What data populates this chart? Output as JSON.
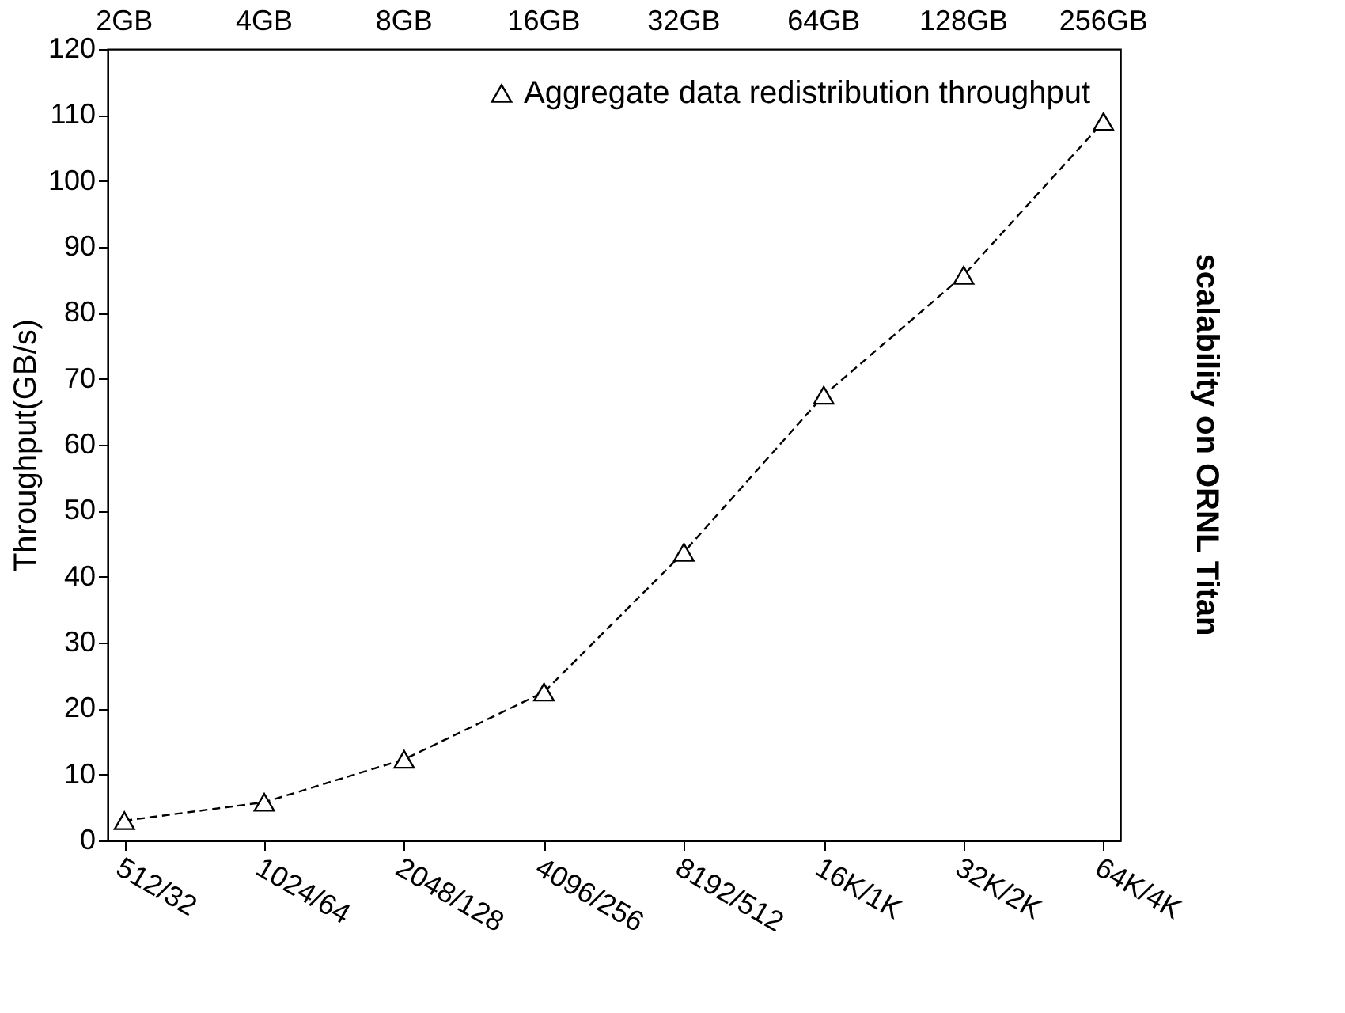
{
  "chart_data": {
    "type": "line",
    "title": "scalability on ORNL Titan",
    "ylabel": "Throughput(GB/s)",
    "categories": [
      "512/32",
      "1024/64",
      "2048/128",
      "4096/256",
      "8192/512",
      "16K/1K",
      "32K/2K",
      "64K/4K"
    ],
    "annotations": [
      "2GB",
      "4GB",
      "8GB",
      "16GB",
      "32GB",
      "64GB",
      "128GB",
      "256GB"
    ],
    "series": [
      {
        "name": "Aggregate data redistribution throughput",
        "color": "#000000",
        "values": [
          3,
          5.8,
          12.3,
          22.5,
          43.7,
          67.5,
          85.7,
          109
        ]
      }
    ],
    "ylim": [
      0,
      120
    ],
    "yticks": [
      0,
      10,
      20,
      30,
      40,
      50,
      60,
      70,
      80,
      90,
      100,
      110,
      120
    ],
    "marker": "triangle",
    "line_style": "dashed",
    "legend": "top right",
    "grid": false
  }
}
